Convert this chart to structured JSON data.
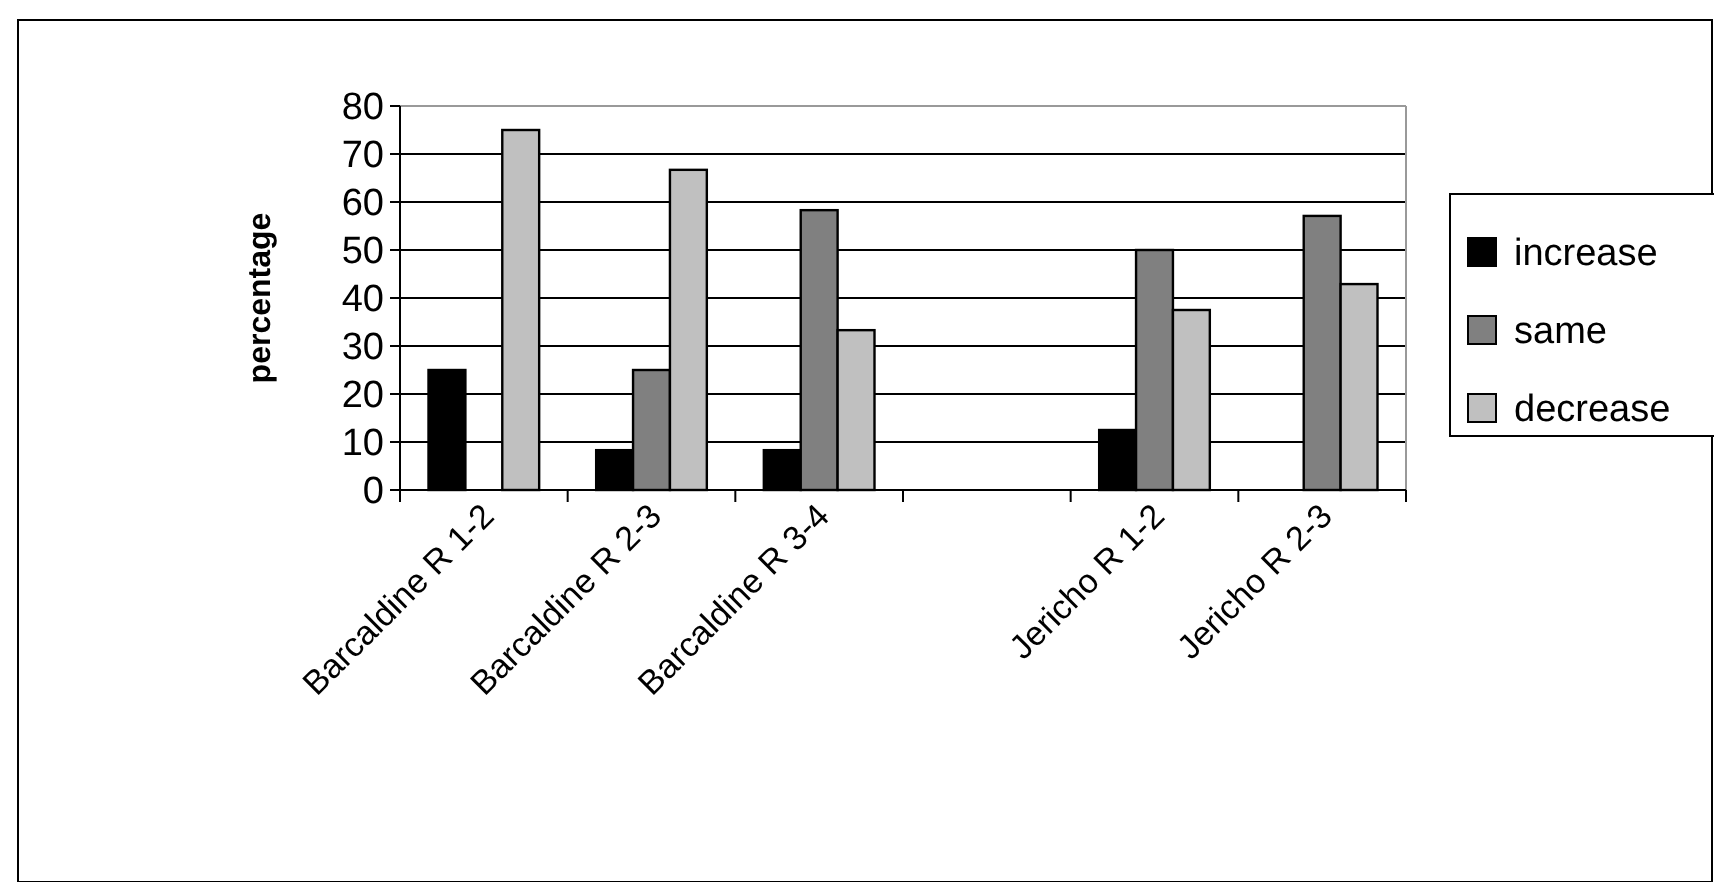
{
  "chart_data": {
    "type": "bar",
    "ylabel": "percentage",
    "categories": [
      "Barcaldine R 1-2",
      "Barcaldine R 2-3",
      "Barcaldine R 3-4",
      null,
      "Jericho R 1-2",
      "Jericho R 2-3"
    ],
    "series": [
      {
        "name": "increase",
        "color": "#000000",
        "values": [
          25,
          8.3,
          8.3,
          null,
          12.5,
          0
        ]
      },
      {
        "name": "same",
        "color": "#808080",
        "values": [
          0,
          25,
          58.3,
          null,
          50,
          57.1
        ]
      },
      {
        "name": "decrease",
        "color": "#c0c0c0",
        "values": [
          75,
          66.7,
          33.3,
          null,
          37.5,
          42.9
        ]
      }
    ],
    "ylim": [
      0,
      80
    ],
    "yticks": [
      0,
      10,
      20,
      30,
      40,
      50,
      60,
      70,
      80
    ],
    "grid": "y",
    "legend": "right"
  }
}
